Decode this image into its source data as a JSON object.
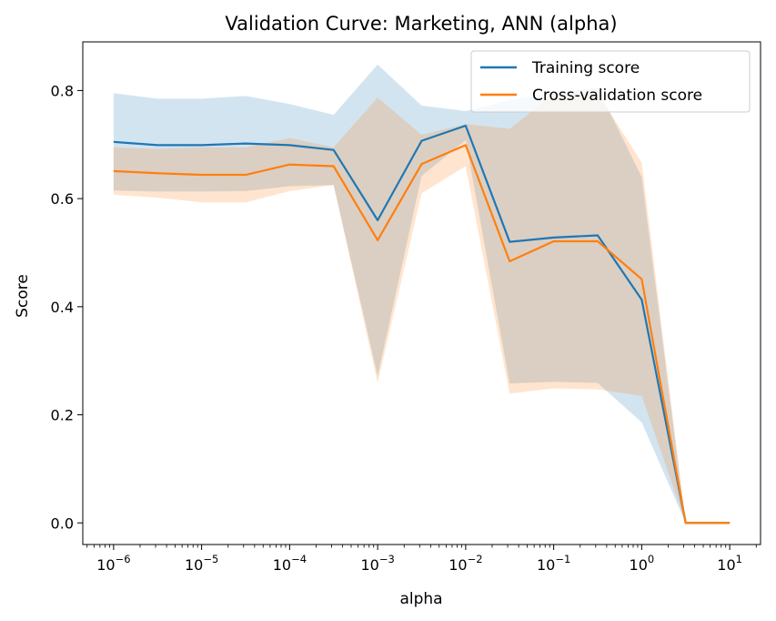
{
  "chart_data": {
    "type": "line",
    "title": "Validation Curve: Marketing, ANN (alpha)",
    "xlabel": "alpha",
    "ylabel": "Score",
    "x_scale": "log",
    "x": [
      1e-06,
      3.16e-06,
      1e-05,
      3.16e-05,
      0.0001,
      0.000316,
      0.001,
      0.00316,
      0.01,
      0.0316,
      0.1,
      0.316,
      1,
      3.16,
      10
    ],
    "series": [
      {
        "name": "Training score",
        "color": "#1f77b4",
        "values": [
          0.705,
          0.699,
          0.699,
          0.702,
          0.699,
          0.69,
          0.56,
          0.707,
          0.735,
          0.52,
          0.528,
          0.532,
          0.413,
          0.0,
          0.0
        ],
        "band_upper": [
          0.795,
          0.785,
          0.785,
          0.79,
          0.775,
          0.755,
          0.848,
          0.772,
          0.762,
          0.782,
          0.795,
          0.805,
          0.64,
          0.0,
          0.0
        ],
        "band_lower": [
          0.615,
          0.613,
          0.613,
          0.614,
          0.623,
          0.625,
          0.272,
          0.642,
          0.708,
          0.258,
          0.261,
          0.259,
          0.186,
          0.0,
          0.0
        ]
      },
      {
        "name": "Cross-validation score",
        "color": "#ff7f0e",
        "values": [
          0.651,
          0.647,
          0.644,
          0.644,
          0.663,
          0.66,
          0.523,
          0.664,
          0.699,
          0.484,
          0.521,
          0.521,
          0.451,
          0.0,
          0.0
        ],
        "band_upper": [
          0.695,
          0.692,
          0.695,
          0.695,
          0.712,
          0.695,
          0.787,
          0.718,
          0.738,
          0.729,
          0.793,
          0.795,
          0.667,
          0.0,
          0.0
        ],
        "band_lower": [
          0.607,
          0.602,
          0.593,
          0.593,
          0.614,
          0.625,
          0.259,
          0.61,
          0.66,
          0.239,
          0.249,
          0.247,
          0.235,
          0.0,
          0.0
        ]
      }
    ],
    "xlim_exp": [
      -6.35,
      1.35
    ],
    "ylim": [
      -0.04,
      0.89
    ],
    "x_ticks": [
      {
        "exp": -6,
        "base": "10",
        "sup": "−6"
      },
      {
        "exp": -5,
        "base": "10",
        "sup": "−5"
      },
      {
        "exp": -4,
        "base": "10",
        "sup": "−4"
      },
      {
        "exp": -3,
        "base": "10",
        "sup": "−3"
      },
      {
        "exp": -2,
        "base": "10",
        "sup": "−2"
      },
      {
        "exp": -1,
        "base": "10",
        "sup": "−1"
      },
      {
        "exp": 0,
        "base": "10",
        "sup": "0"
      },
      {
        "exp": 1,
        "base": "10",
        "sup": "1"
      }
    ],
    "y_ticks": [
      {
        "value": 0.0,
        "label": "0.0"
      },
      {
        "value": 0.2,
        "label": "0.2"
      },
      {
        "value": 0.4,
        "label": "0.4"
      },
      {
        "value": 0.6,
        "label": "0.6"
      },
      {
        "value": 0.8,
        "label": "0.8"
      }
    ],
    "legend_position": "top-right",
    "grid": false
  }
}
